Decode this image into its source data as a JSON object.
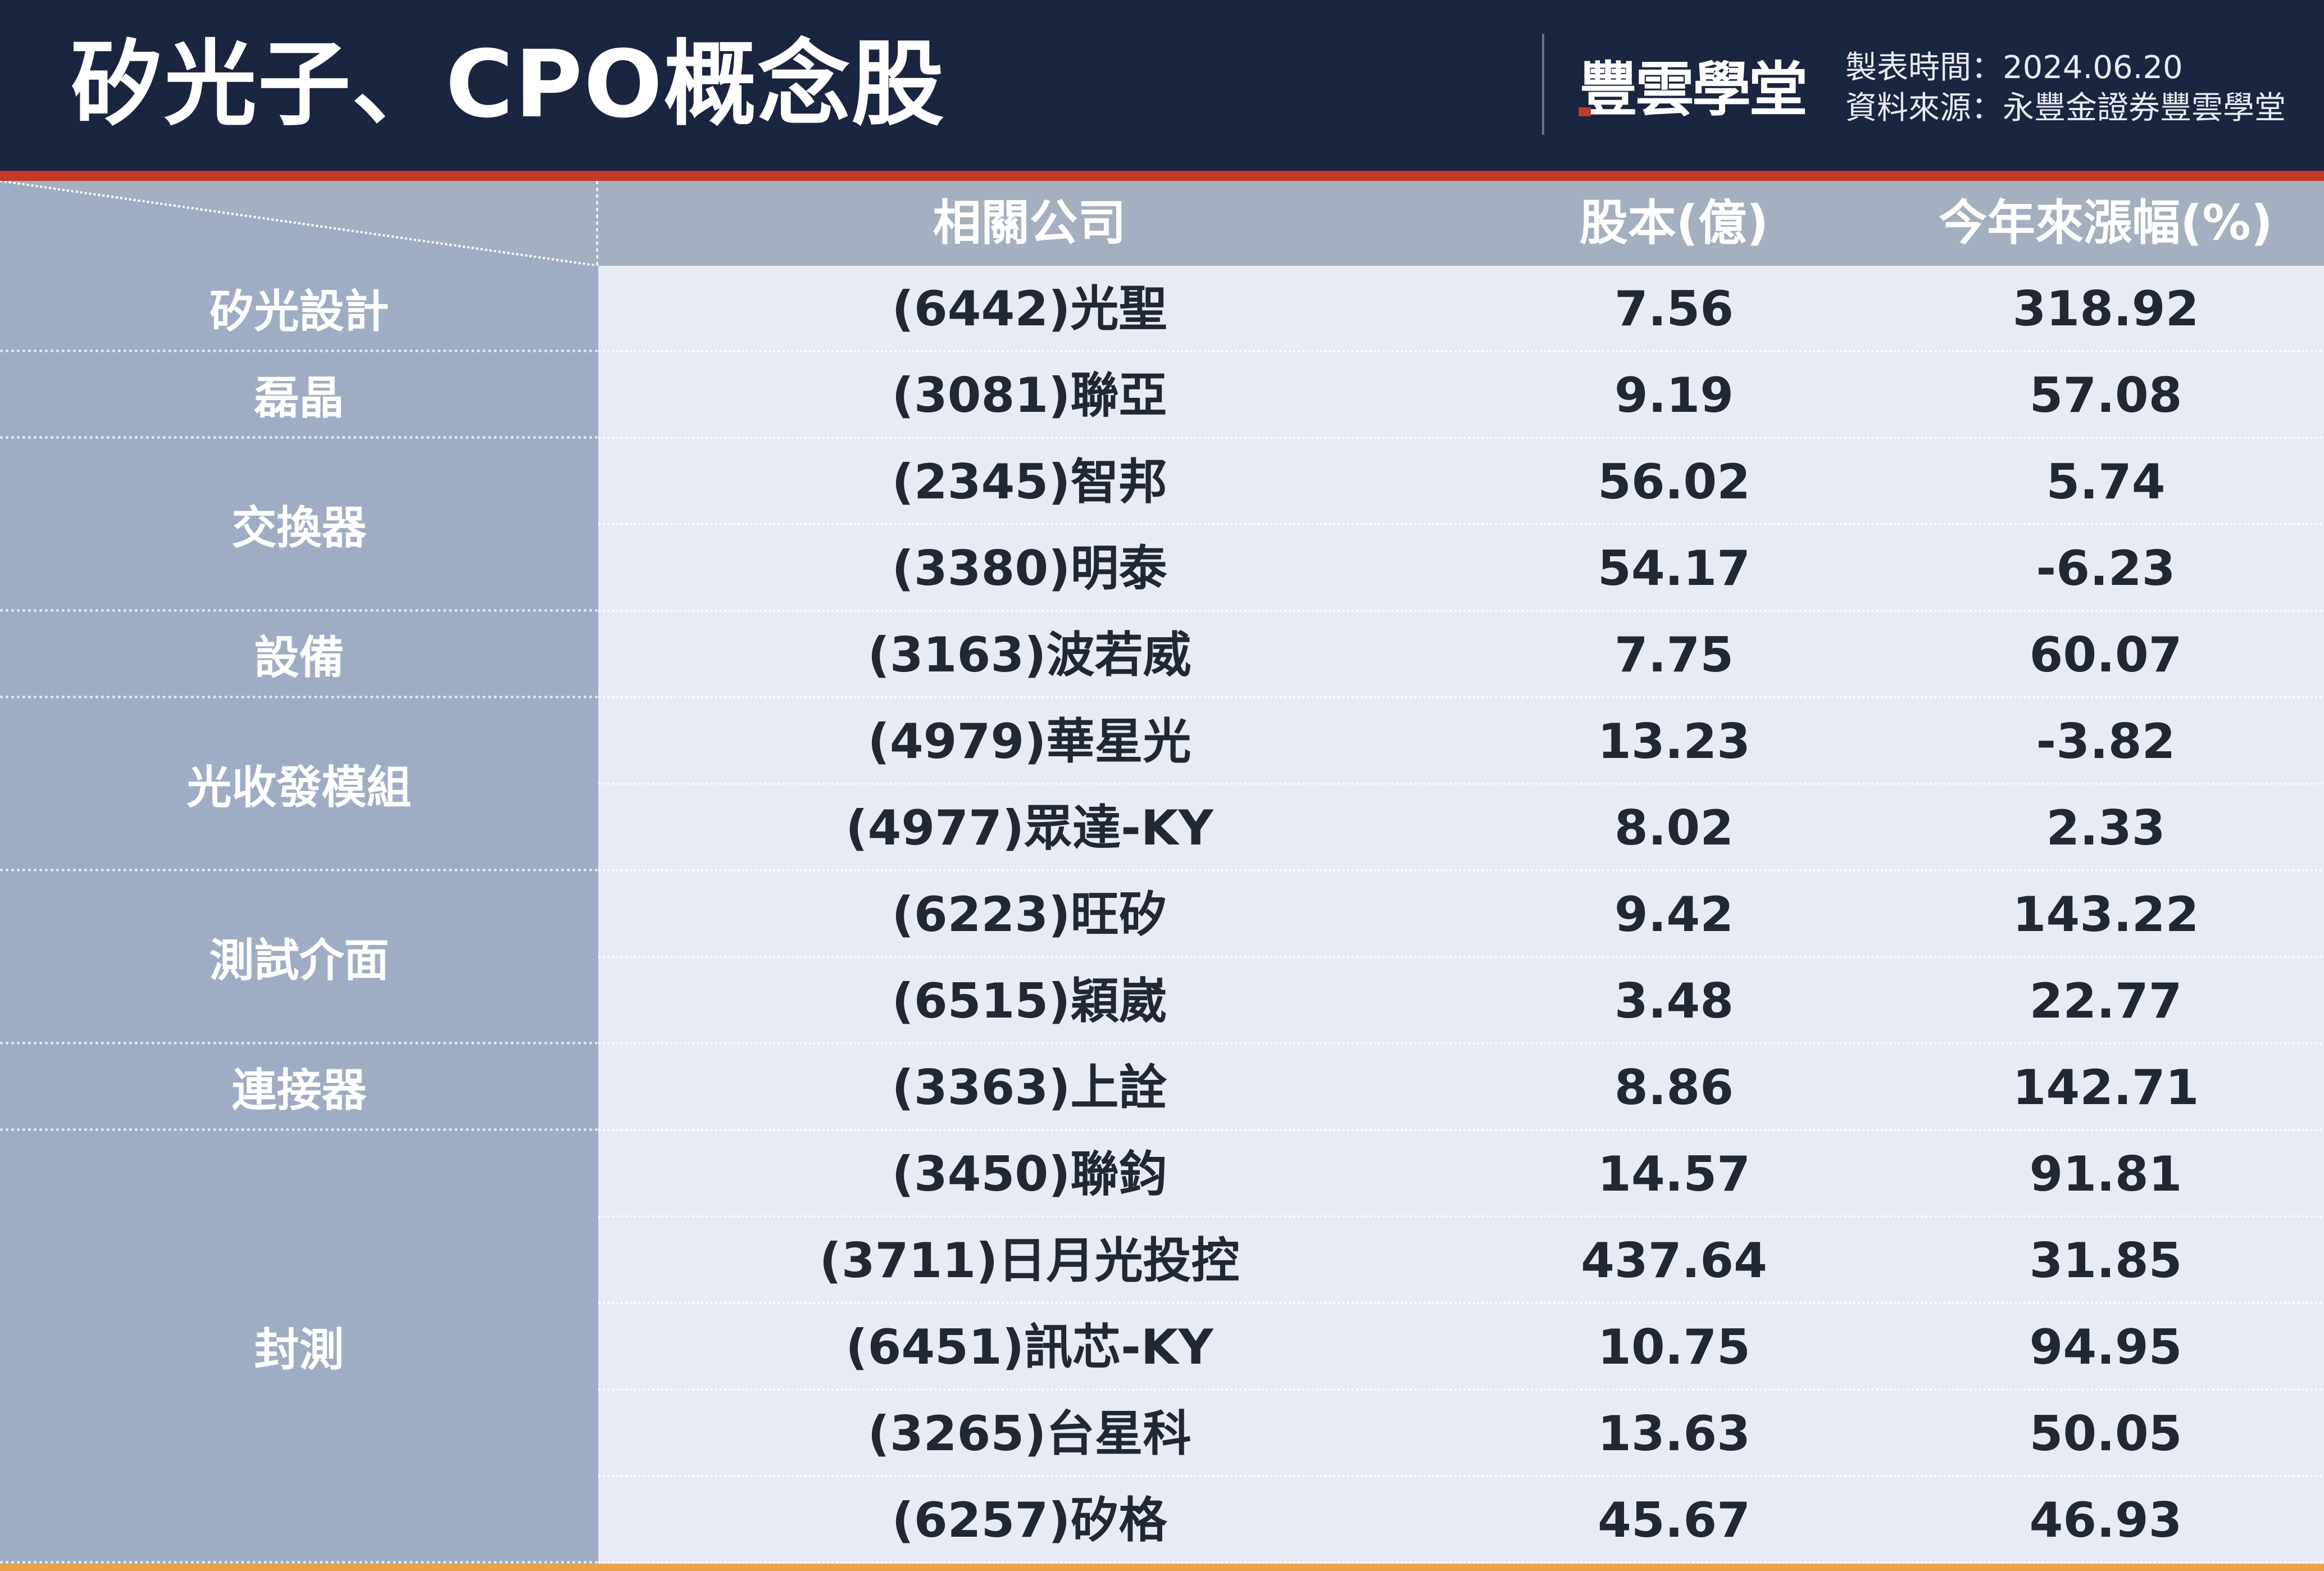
{
  "header": {
    "title": "矽光子、CPO概念股",
    "logo": "豐雲學堂",
    "made_label": "製表時間：",
    "made_date": "2024.06.20",
    "source_label": "資料來源：",
    "source": "永豐金證券豐雲學堂"
  },
  "colors": {
    "header_bg": "#1a2540",
    "accent": "#c23a28",
    "category_bg": "#9fadc4",
    "body_bg": "#e6ebf4"
  },
  "table": {
    "columns": [
      "相關公司",
      "股本(億)",
      "今年來漲幅(%)"
    ],
    "categories": [
      {
        "name": "矽光設計",
        "rows": 1
      },
      {
        "name": "磊晶",
        "rows": 1
      },
      {
        "name": "交換器",
        "rows": 2
      },
      {
        "name": "設備",
        "rows": 1
      },
      {
        "name": "光收發模組",
        "rows": 2
      },
      {
        "name": "測試介面",
        "rows": 2
      },
      {
        "name": "連接器",
        "rows": 1
      },
      {
        "name": "封測",
        "rows": 5
      }
    ],
    "rows": [
      [
        "(6442)光聖",
        "7.56",
        "318.92"
      ],
      [
        "(3081)聯亞",
        "9.19",
        "57.08"
      ],
      [
        "(2345)智邦",
        "56.02",
        "5.74"
      ],
      [
        "(3380)明泰",
        "54.17",
        "-6.23"
      ],
      [
        "(3163)波若威",
        "7.75",
        "60.07"
      ],
      [
        "(4979)華星光",
        "13.23",
        "-3.82"
      ],
      [
        "(4977)眾達-KY",
        "8.02",
        "2.33"
      ],
      [
        "(6223)旺矽",
        "9.42",
        "143.22"
      ],
      [
        "(6515)穎崴",
        "3.48",
        "22.77"
      ],
      [
        "(3363)上詮",
        "8.86",
        "142.71"
      ],
      [
        "(3450)聯鈞",
        "14.57",
        "91.81"
      ],
      [
        "(3711)日月光投控",
        "437.64",
        "31.85"
      ],
      [
        "(6451)訊芯-KY",
        "10.75",
        "94.95"
      ],
      [
        "(3265)台星科",
        "13.63",
        "50.05"
      ],
      [
        "(6257)矽格",
        "45.67",
        "46.93"
      ]
    ]
  }
}
